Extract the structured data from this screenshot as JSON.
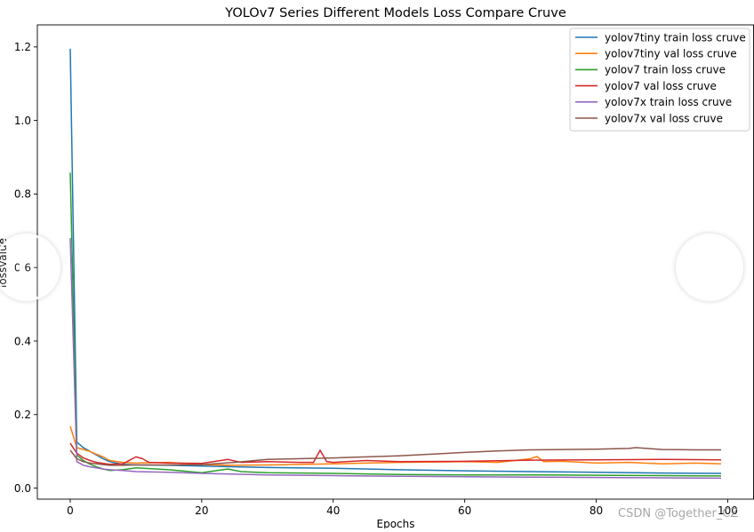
{
  "chart_data": {
    "type": "line",
    "title": "YOLOv7 Series Different Models Loss Compare Cruve",
    "xlabel": "Epochs",
    "ylabel": "lossvalue",
    "xlim": [
      -5,
      104
    ],
    "ylim": [
      -0.03,
      1.26
    ],
    "xticks": [
      0,
      20,
      40,
      60,
      80,
      100
    ],
    "yticks": [
      0.0,
      0.2,
      0.4,
      0.6,
      0.8,
      1.0,
      1.2
    ],
    "xtick_labels": [
      "0",
      "20",
      "40",
      "60",
      "80",
      "100"
    ],
    "ytick_labels": [
      "0.0",
      "0.2",
      "0.4",
      "0.6",
      "0.8",
      "1.0",
      "1.2"
    ],
    "grid": false,
    "legend_position": "top-right",
    "series": [
      {
        "name": "yolov7tiny train loss cruve",
        "color": "#1f77b4",
        "x": [
          0,
          1,
          2,
          3,
          4,
          5,
          6,
          7,
          8,
          10,
          15,
          20,
          30,
          40,
          50,
          60,
          70,
          80,
          90,
          99
        ],
        "y": [
          1.195,
          0.125,
          0.11,
          0.1,
          0.09,
          0.08,
          0.072,
          0.068,
          0.065,
          0.063,
          0.062,
          0.06,
          0.056,
          0.054,
          0.05,
          0.047,
          0.045,
          0.043,
          0.041,
          0.04
        ]
      },
      {
        "name": "yolov7tiny val loss cruve",
        "color": "#ff7f0e",
        "x": [
          0,
          1,
          2,
          3,
          4,
          5,
          6,
          8,
          10,
          15,
          20,
          25,
          30,
          40,
          45,
          50,
          55,
          60,
          65,
          70,
          71,
          72,
          75,
          80,
          85,
          90,
          95,
          99
        ],
        "y": [
          0.168,
          0.11,
          0.105,
          0.1,
          0.092,
          0.085,
          0.075,
          0.07,
          0.068,
          0.07,
          0.064,
          0.062,
          0.063,
          0.066,
          0.068,
          0.07,
          0.071,
          0.072,
          0.07,
          0.08,
          0.086,
          0.072,
          0.073,
          0.068,
          0.07,
          0.066,
          0.068,
          0.066
        ]
      },
      {
        "name": "yolov7 train loss cruve",
        "color": "#2ca02c",
        "x": [
          0,
          1,
          2,
          3,
          4,
          5,
          6,
          8,
          10,
          15,
          20,
          24,
          26,
          30,
          40,
          50,
          60,
          70,
          80,
          90,
          99
        ],
        "y": [
          0.858,
          0.09,
          0.075,
          0.065,
          0.058,
          0.052,
          0.048,
          0.05,
          0.055,
          0.05,
          0.042,
          0.052,
          0.045,
          0.042,
          0.04,
          0.037,
          0.036,
          0.036,
          0.035,
          0.034,
          0.033
        ]
      },
      {
        "name": "yolov7 val loss cruve",
        "color": "#d62728",
        "x": [
          0,
          1,
          2,
          3,
          4,
          5,
          6,
          8,
          10,
          11,
          12,
          15,
          20,
          24,
          26,
          30,
          35,
          37,
          38,
          39,
          40,
          45,
          50,
          60,
          70,
          80,
          90,
          99
        ],
        "y": [
          0.122,
          0.095,
          0.082,
          0.075,
          0.07,
          0.067,
          0.065,
          0.066,
          0.085,
          0.08,
          0.07,
          0.068,
          0.067,
          0.078,
          0.07,
          0.072,
          0.07,
          0.07,
          0.103,
          0.072,
          0.07,
          0.075,
          0.072,
          0.073,
          0.076,
          0.077,
          0.078,
          0.077
        ]
      },
      {
        "name": "yolov7x train loss cruve",
        "color": "#9467bd",
        "x": [
          0,
          1,
          2,
          3,
          4,
          5,
          6,
          8,
          10,
          15,
          20,
          30,
          40,
          50,
          60,
          70,
          80,
          90,
          99
        ],
        "y": [
          0.68,
          0.072,
          0.062,
          0.058,
          0.055,
          0.052,
          0.05,
          0.048,
          0.045,
          0.043,
          0.04,
          0.036,
          0.034,
          0.032,
          0.031,
          0.03,
          0.029,
          0.028,
          0.027
        ]
      },
      {
        "name": "yolov7x val loss cruve",
        "color": "#8c564b",
        "x": [
          0,
          1,
          2,
          3,
          4,
          5,
          6,
          8,
          10,
          15,
          20,
          25,
          30,
          40,
          50,
          60,
          65,
          70,
          80,
          85,
          86,
          90,
          95,
          99
        ],
        "y": [
          0.103,
          0.08,
          0.072,
          0.068,
          0.066,
          0.064,
          0.062,
          0.062,
          0.063,
          0.063,
          0.064,
          0.07,
          0.078,
          0.082,
          0.088,
          0.097,
          0.101,
          0.104,
          0.106,
          0.108,
          0.11,
          0.105,
          0.104,
          0.104
        ]
      }
    ]
  },
  "watermark": "CSDN @Together_CZ"
}
